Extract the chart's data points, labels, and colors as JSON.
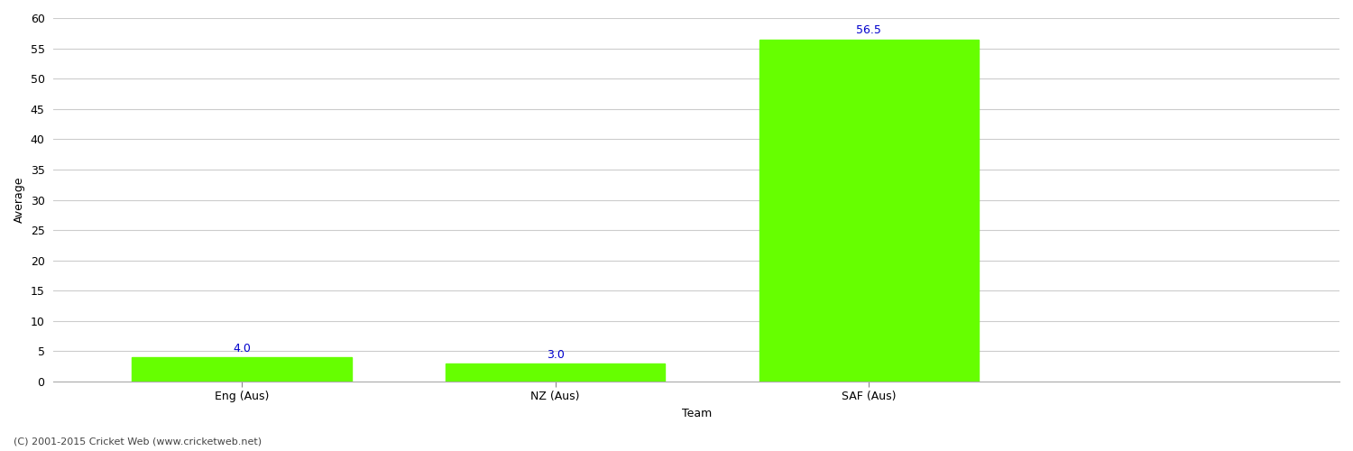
{
  "categories": [
    "Eng (Aus)",
    "NZ (Aus)",
    "SAF (Aus)"
  ],
  "values": [
    4.0,
    3.0,
    56.5
  ],
  "bar_color": "#66ff00",
  "bar_edge_color": "#66ff00",
  "xlabel": "Team",
  "ylabel": "Average",
  "ylim": [
    0,
    60
  ],
  "yticks": [
    0,
    5,
    10,
    15,
    20,
    25,
    30,
    35,
    40,
    45,
    50,
    55,
    60
  ],
  "label_color": "#0000cc",
  "label_fontsize": 9,
  "tick_fontsize": 9,
  "xlabel_fontsize": 9,
  "ylabel_fontsize": 9,
  "background_color": "#ffffff",
  "grid_color": "#cccccc",
  "footer_text": "(C) 2001-2015 Cricket Web (www.cricketweb.net)",
  "footer_fontsize": 8,
  "footer_color": "#444444",
  "bar_width": 0.7,
  "xlim": [
    -0.6,
    3.5
  ]
}
